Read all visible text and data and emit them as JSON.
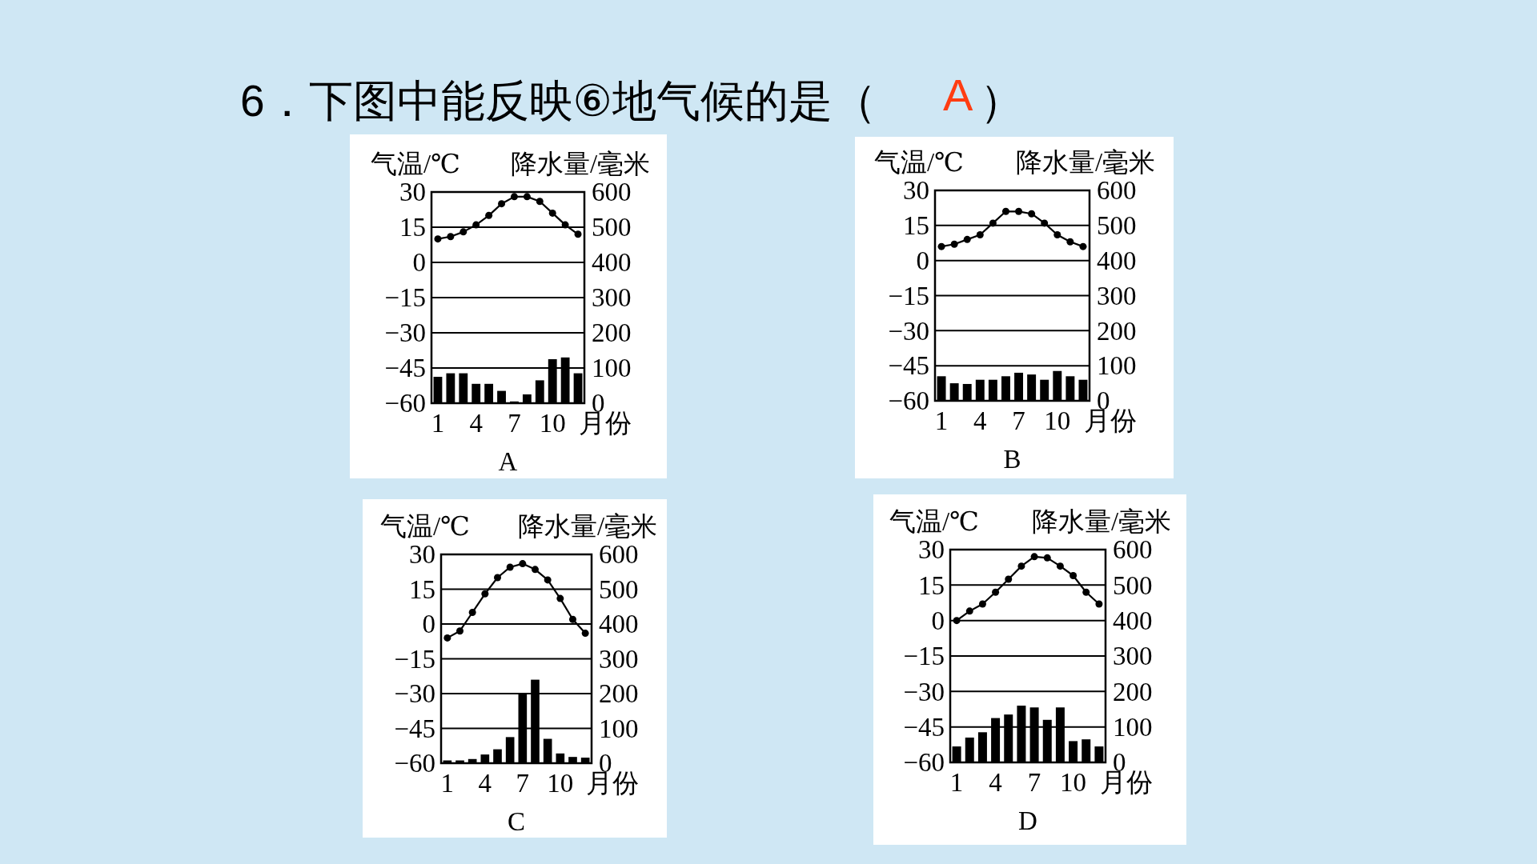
{
  "chart_data": [
    {
      "type": "other",
      "title": "6．下图中能反映⑥地气候的是（",
      "annotations": [
        "A",
        "）"
      ]
    },
    {
      "type": "bar",
      "title": "A",
      "xlabel": "月份",
      "ylabel": "气温/℃",
      "y2label": "降水量/毫米",
      "categories": [
        "1",
        null,
        null,
        "4",
        null,
        null,
        "7",
        null,
        null,
        "10",
        null,
        null
      ],
      "series": [
        {
          "type": "bar",
          "axis": "y2",
          "color": "#000000",
          "values": [
            75,
            85,
            85,
            55,
            55,
            35,
            5,
            25,
            65,
            125,
            130,
            85
          ]
        },
        {
          "type": "line",
          "color": "#000000",
          "values": [
            10,
            11,
            13,
            16,
            20,
            25,
            28,
            28,
            26,
            21,
            16,
            12
          ]
        }
      ],
      "ylim": [
        -60,
        30
      ],
      "yticks": [
        -60,
        -45,
        -30,
        -15,
        0,
        15,
        30
      ],
      "y2lim": [
        0,
        600
      ],
      "y2ticks": [
        0,
        100,
        200,
        300,
        400,
        500,
        600
      ],
      "grid": "y",
      "marker": "circle",
      "line_style": "solid"
    },
    {
      "type": "bar",
      "title": "B",
      "xlabel": "月份",
      "ylabel": "气温/℃",
      "y2label": "降水量/毫米",
      "categories": [
        "1",
        null,
        null,
        "4",
        null,
        null,
        "7",
        null,
        null,
        "10",
        null,
        null
      ],
      "series": [
        {
          "type": "bar",
          "axis": "y2",
          "color": "#000000",
          "values": [
            70,
            50,
            48,
            60,
            60,
            70,
            80,
            75,
            60,
            85,
            70,
            60
          ]
        },
        {
          "type": "line",
          "color": "#000000",
          "values": [
            6,
            7,
            9,
            11,
            16,
            21,
            21,
            20,
            16,
            11,
            8,
            6
          ]
        }
      ],
      "ylim": [
        -60,
        30
      ],
      "yticks": [
        -60,
        -45,
        -30,
        -15,
        0,
        15,
        30
      ],
      "y2lim": [
        0,
        600
      ],
      "y2ticks": [
        0,
        100,
        200,
        300,
        400,
        500,
        600
      ],
      "grid": "y",
      "marker": "circle",
      "line_style": "solid"
    },
    {
      "type": "bar",
      "title": "C",
      "xlabel": "月份",
      "ylabel": "气温/℃",
      "y2label": "降水量/毫米",
      "categories": [
        "1",
        null,
        null,
        "4",
        null,
        null,
        "7",
        null,
        null,
        "10",
        null,
        null
      ],
      "series": [
        {
          "type": "bar",
          "axis": "y2",
          "color": "#000000",
          "values": [
            8,
            8,
            12,
            25,
            40,
            75,
            200,
            240,
            70,
            28,
            18,
            16
          ]
        },
        {
          "type": "line",
          "color": "#000000",
          "values": [
            -6,
            -3,
            5,
            13,
            20,
            24.5,
            26,
            23.5,
            19,
            11,
            2,
            -4
          ]
        }
      ],
      "ylim": [
        -60,
        30
      ],
      "yticks": [
        -60,
        -45,
        -30,
        -15,
        0,
        15,
        30
      ],
      "y2lim": [
        0,
        600
      ],
      "y2ticks": [
        0,
        100,
        200,
        300,
        400,
        500,
        600
      ],
      "grid": "y",
      "marker": "circle",
      "line_style": "solid"
    },
    {
      "type": "bar",
      "title": "D",
      "xlabel": "月份",
      "ylabel": "气温/℃",
      "y2label": "降水量/毫米",
      "categories": [
        "1",
        null,
        null,
        "4",
        null,
        null,
        "7",
        null,
        null,
        "10",
        null,
        null
      ],
      "series": [
        {
          "type": "bar",
          "axis": "y2",
          "color": "#000000",
          "values": [
            45,
            70,
            85,
            125,
            135,
            160,
            155,
            120,
            155,
            60,
            65,
            45
          ]
        },
        {
          "type": "line",
          "color": "#000000",
          "values": [
            0,
            4,
            7,
            12,
            17.5,
            23,
            27,
            26.5,
            23,
            19,
            12,
            7
          ]
        }
      ],
      "ylim": [
        -60,
        30
      ],
      "yticks": [
        -60,
        -45,
        -30,
        -15,
        0,
        15,
        30
      ],
      "y2lim": [
        0,
        600
      ],
      "y2ticks": [
        0,
        100,
        200,
        300,
        400,
        500,
        600
      ],
      "grid": "y",
      "marker": "circle",
      "line_style": "solid"
    }
  ]
}
